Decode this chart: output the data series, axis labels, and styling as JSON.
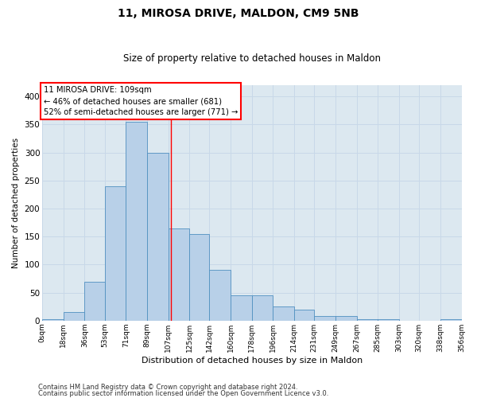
{
  "title": "11, MIROSA DRIVE, MALDON, CM9 5NB",
  "subtitle": "Size of property relative to detached houses in Maldon",
  "xlabel": "Distribution of detached houses by size in Maldon",
  "ylabel": "Number of detached properties",
  "footnote1": "Contains HM Land Registry data © Crown copyright and database right 2024.",
  "footnote2": "Contains public sector information licensed under the Open Government Licence v3.0.",
  "bin_labels": [
    "0sqm",
    "18sqm",
    "36sqm",
    "53sqm",
    "71sqm",
    "89sqm",
    "107sqm",
    "125sqm",
    "142sqm",
    "160sqm",
    "178sqm",
    "196sqm",
    "214sqm",
    "231sqm",
    "249sqm",
    "267sqm",
    "285sqm",
    "303sqm",
    "320sqm",
    "338sqm",
    "356sqm"
  ],
  "bin_edges": [
    0,
    18,
    36,
    53,
    71,
    89,
    107,
    125,
    142,
    160,
    178,
    196,
    214,
    231,
    249,
    267,
    285,
    303,
    320,
    338,
    356
  ],
  "bar_heights": [
    2,
    15,
    70,
    240,
    355,
    300,
    165,
    155,
    90,
    45,
    45,
    25,
    20,
    8,
    8,
    2,
    2,
    0,
    0,
    2,
    0
  ],
  "bar_color": "#b8d0e8",
  "bar_edge_color": "#5090c0",
  "property_size": 109,
  "property_label": "11 MIROSA DRIVE: 109sqm",
  "annotation_line1": "← 46% of detached houses are smaller (681)",
  "annotation_line2": "52% of semi-detached houses are larger (771) →",
  "vline_color": "red",
  "grid_color": "#c8d8e8",
  "background_color": "#dce8f0",
  "ylim": [
    0,
    420
  ],
  "yticks": [
    0,
    50,
    100,
    150,
    200,
    250,
    300,
    350,
    400
  ]
}
